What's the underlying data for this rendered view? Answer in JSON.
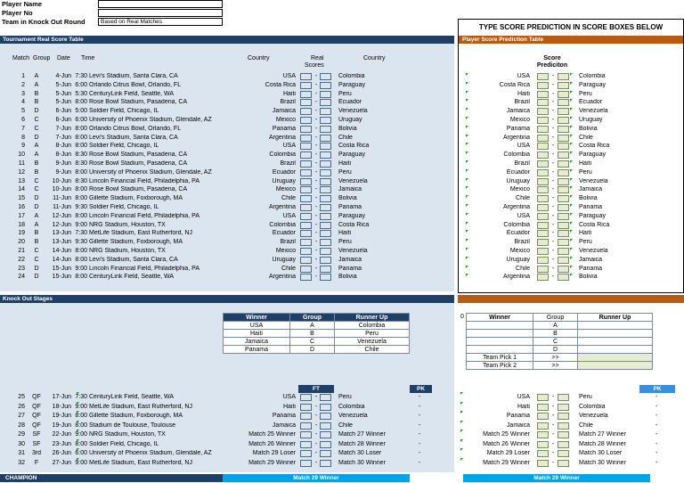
{
  "header": {
    "player_name_label": "Player Name",
    "player_no_label": "Player No",
    "team_ko_label": "Team in Knock Out Round",
    "team_ko_value": "Based on Real Matches",
    "type_banner": "TYPE SCORE PREDICTION IN SCORE BOXES BELOW"
  },
  "real_table": {
    "title": "Tournament Real Score Table",
    "cols": {
      "match": "Match",
      "group": "Group",
      "date": "Date",
      "time": "Time",
      "country1": "Country",
      "real": "Real",
      "scores": "Scores",
      "country2": "Country"
    },
    "rows": [
      {
        "n": "1",
        "g": "A",
        "d": "4-Jun",
        "t": "7:30",
        "v": "Levi's Stadium, Santa Clara, CA",
        "c1": "USA",
        "c2": "Colombia"
      },
      {
        "n": "2",
        "g": "A",
        "d": "5-Jun",
        "t": "6:00",
        "v": "Orlando Citrus Bowl, Orlando, FL",
        "c1": "Costa Rica",
        "c2": "Paraguay"
      },
      {
        "n": "3",
        "g": "B",
        "d": "5-Jun",
        "t": "5:30",
        "v": "CenturyLink Field, Seattle, WA",
        "c1": "Haiti",
        "c2": "Peru"
      },
      {
        "n": "4",
        "g": "B",
        "d": "5-Jun",
        "t": "8:00",
        "v": "Rose Bowl Stadium, Pasadena, CA",
        "c1": "Brazil",
        "c2": "Ecuador"
      },
      {
        "n": "5",
        "g": "D",
        "d": "6-Jun",
        "t": "5:00",
        "v": "Soldier Field, Chicago, IL",
        "c1": "Jamaica",
        "c2": "Venezuela"
      },
      {
        "n": "6",
        "g": "C",
        "d": "6-Jun",
        "t": "6:00",
        "v": "University of Phoenix Stadium, Glendale, AZ",
        "c1": "Mexico",
        "c2": "Uruguay"
      },
      {
        "n": "7",
        "g": "C",
        "d": "7-Jun",
        "t": "8:00",
        "v": "Orlando Citrus Bowl, Orlando, FL",
        "c1": "Panama",
        "c2": "Bolivia"
      },
      {
        "n": "8",
        "g": "D",
        "d": "7-Jun",
        "t": "8:00",
        "v": "Levi's Stadium, Santa Clara, CA",
        "c1": "Argentina",
        "c2": "Chile"
      },
      {
        "n": "9",
        "g": "A",
        "d": "8-Jun",
        "t": "8:00",
        "v": "Soldier Field, Chicago, IL",
        "c1": "USA",
        "c2": "Costa Rica"
      },
      {
        "n": "10",
        "g": "A",
        "d": "8-Jun",
        "t": "8:30",
        "v": "Rose Bowl Stadium, Pasadena, CA",
        "c1": "Colombia",
        "c2": "Paraguay"
      },
      {
        "n": "11",
        "g": "B",
        "d": "9-Jun",
        "t": "8:30",
        "v": "Rose Bowl Stadium, Pasadena, CA",
        "c1": "Brazil",
        "c2": "Haiti"
      },
      {
        "n": "12",
        "g": "B",
        "d": "9-Jun",
        "t": "8:00",
        "v": "University of Phoenix Stadium, Glendale, AZ",
        "c1": "Ecuador",
        "c2": "Peru"
      },
      {
        "n": "13",
        "g": "C",
        "d": "10-Jun",
        "t": "8:30",
        "v": "Lincoln Financial Field, Philadelphia, PA",
        "c1": "Uruguay",
        "c2": "Venezuela"
      },
      {
        "n": "14",
        "g": "C",
        "d": "10-Jun",
        "t": "8:00",
        "v": "Rose Bowl Stadium, Pasadena, CA",
        "c1": "Mexico",
        "c2": "Jamaica"
      },
      {
        "n": "15",
        "g": "D",
        "d": "11-Jun",
        "t": "8:00",
        "v": "Gillette Stadium, Foxborough, MA",
        "c1": "Chile",
        "c2": "Bolivia"
      },
      {
        "n": "16",
        "g": "D",
        "d": "11-Jun",
        "t": "9:30",
        "v": "Soldier Field, Chicago, IL",
        "c1": "Argentina",
        "c2": "Panama"
      },
      {
        "n": "17",
        "g": "A",
        "d": "12-Jun",
        "t": "8:00",
        "v": "Lincoln Financial Field, Philadelphia, PA",
        "c1": "USA",
        "c2": "Paraguay"
      },
      {
        "n": "18",
        "g": "A",
        "d": "12-Jun",
        "t": "9:00",
        "v": "NRG Stadium, Houston, TX",
        "c1": "Colombia",
        "c2": "Costa Rica"
      },
      {
        "n": "19",
        "g": "B",
        "d": "13-Jun",
        "t": "7:30",
        "v": "MetLife Stadium, East Rutherford, NJ",
        "c1": "Ecuador",
        "c2": "Haiti"
      },
      {
        "n": "20",
        "g": "B",
        "d": "13-Jun",
        "t": "9:30",
        "v": "Gillette Stadium, Foxborough, MA",
        "c1": "Brazil",
        "c2": "Peru"
      },
      {
        "n": "21",
        "g": "C",
        "d": "14-Jun",
        "t": "8:00",
        "v": "NRG Stadium, Houston, TX",
        "c1": "Mexico",
        "c2": "Venezuela"
      },
      {
        "n": "22",
        "g": "C",
        "d": "14-Jun",
        "t": "8:00",
        "v": "Levi's Stadium, Santa Clara, CA",
        "c1": "Uruguay",
        "c2": "Jamaica"
      },
      {
        "n": "23",
        "g": "D",
        "d": "15-Jun",
        "t": "9:00",
        "v": "Lincoln Financial Field, Philadelphia, PA",
        "c1": "Chile",
        "c2": "Panama"
      },
      {
        "n": "24",
        "g": "D",
        "d": "15-Jun",
        "t": "8:00",
        "v": "CenturyLink Field, Seattle, WA",
        "c1": "Argentina",
        "c2": "Bolivia"
      }
    ],
    "dash": "-"
  },
  "pred_table": {
    "title": "Player Score Prediction Table",
    "score_label": "Score",
    "prediction_label": "Prediciton",
    "rows": [
      {
        "c1": "USA",
        "c2": "Colombia"
      },
      {
        "c1": "Costa Rica",
        "c2": "Paraguay"
      },
      {
        "c1": "Haiti",
        "c2": "Peru"
      },
      {
        "c1": "Brazil",
        "c2": "Ecuador"
      },
      {
        "c1": "Jamaica",
        "c2": "Venezuela"
      },
      {
        "c1": "Mexico",
        "c2": "Uruguay"
      },
      {
        "c1": "Panama",
        "c2": "Bolivia"
      },
      {
        "c1": "Argentina",
        "c2": "Chile"
      },
      {
        "c1": "USA",
        "c2": "Costa Rica"
      },
      {
        "c1": "Colombia",
        "c2": "Paraguay"
      },
      {
        "c1": "Brazil",
        "c2": "Haiti"
      },
      {
        "c1": "Ecuador",
        "c2": "Peru"
      },
      {
        "c1": "Uruguay",
        "c2": "Venezuela"
      },
      {
        "c1": "Mexico",
        "c2": "Jamaica"
      },
      {
        "c1": "Chile",
        "c2": "Bolivia"
      },
      {
        "c1": "Argentina",
        "c2": "Panama"
      },
      {
        "c1": "USA",
        "c2": "Paraguay"
      },
      {
        "c1": "Colombia",
        "c2": "Costa Rica"
      },
      {
        "c1": "Ecuador",
        "c2": "Haiti"
      },
      {
        "c1": "Brazil",
        "c2": "Peru"
      },
      {
        "c1": "Mexico",
        "c2": "Venezuela"
      },
      {
        "c1": "Uruguay",
        "c2": "Jamaica"
      },
      {
        "c1": "Chile",
        "c2": "Panama"
      },
      {
        "c1": "Argentina",
        "c2": "Bolivia"
      }
    ]
  },
  "knockout": {
    "title": "Knock Out Stages",
    "group_table": {
      "headers": [
        "Winner",
        "Group",
        "Runner Up"
      ],
      "rows": [
        [
          "USA",
          "A",
          "Colombia"
        ],
        [
          "Haiti",
          "B",
          "Peru"
        ],
        [
          "Jamaica",
          "C",
          "Venezuela"
        ],
        [
          "Panama",
          "D",
          "Chile"
        ]
      ]
    },
    "pred_group_table": {
      "zero": "0",
      "headers": [
        "Winner",
        "Group",
        "Runner Up"
      ],
      "rows": [
        [
          "",
          "A",
          ""
        ],
        [
          "",
          "B",
          ""
        ],
        [
          "",
          "C",
          ""
        ],
        [
          "",
          "D",
          ""
        ]
      ],
      "picks": [
        [
          "Team Pick 1",
          ">>"
        ],
        [
          "Team Pick 2",
          ">>"
        ]
      ]
    },
    "ft_label": "FT",
    "pk_label": "PK",
    "rows": [
      {
        "n": "25",
        "s": "QF",
        "d": "17-Jun",
        "t": "7:30",
        "v": "CenturyLink Field, Seattle, WA",
        "c1": "USA",
        "c2": "Peru",
        "pk": "-"
      },
      {
        "n": "26",
        "s": "QF",
        "d": "18-Jun",
        "t": "9:00",
        "v": "MetLife Stadium, East Rutherford, NJ",
        "c1": "Haiti",
        "c2": "Colombia",
        "pk": "-"
      },
      {
        "n": "27",
        "s": "QF",
        "d": "19-Jun",
        "t": "8:00",
        "v": "Gillette Stadium, Foxborough, MA",
        "c1": "Panama",
        "c2": "Venezuela",
        "pk": "-"
      },
      {
        "n": "28",
        "s": "QF",
        "d": "19-Jun",
        "t": "8:00",
        "v": "Stadium de Toulouse, Toulouse",
        "c1": "Jamaica",
        "c2": "Chile",
        "pk": "-"
      },
      {
        "n": "29",
        "s": "SF",
        "d": "22-Jun",
        "t": "9:00",
        "v": "NRG Stadium, Houston, TX",
        "c1": "Match 25 Winner",
        "c2": "Match 27 Winner",
        "pk": "-"
      },
      {
        "n": "30",
        "s": "SF",
        "d": "23-Jun",
        "t": "8:00",
        "v": "Soldier Field, Chicago, IL",
        "c1": "Match 26 Winner",
        "c2": "Match 28 Winner",
        "pk": "-"
      },
      {
        "n": "31",
        "s": "3rd",
        "d": "26-Jun",
        "t": "6:00",
        "v": "University of Phoenix Stadium, Glendale, AZ",
        "c1": "Match 29 Loser",
        "c2": "Match 30 Loser",
        "pk": "-"
      },
      {
        "n": "32",
        "s": "F",
        "d": "27-Jun",
        "t": "9:00",
        "v": "MetLife Stadium, East Rutherford, NJ",
        "c1": "Match 29 Winner",
        "c2": "Match 30 Winner",
        "pk": "-"
      }
    ],
    "pred_rows": [
      {
        "c1": "USA",
        "c2": "Peru",
        "pk": "-"
      },
      {
        "c1": "Haiti",
        "c2": "Colombia",
        "pk": "-"
      },
      {
        "c1": "Panama",
        "c2": "Venezuela",
        "pk": "-"
      },
      {
        "c1": "Jamaica",
        "c2": "Chile",
        "pk": "-"
      },
      {
        "c1": "Match 25 Winner",
        "c2": "Match 27 Winner",
        "pk": "-"
      },
      {
        "c1": "Match 26 Winner",
        "c2": "Match 28 Winner",
        "pk": "-"
      },
      {
        "c1": "Match 29 Loser",
        "c2": "Match 30 Loser",
        "pk": "-"
      },
      {
        "c1": "Match 29 Winner",
        "c2": "Match 30 Winner",
        "pk": "-"
      }
    ],
    "champion_label": "CHAMPION",
    "champion_value": "Match 29 Winner",
    "pred_champion_value": "Match 29 Winner"
  }
}
